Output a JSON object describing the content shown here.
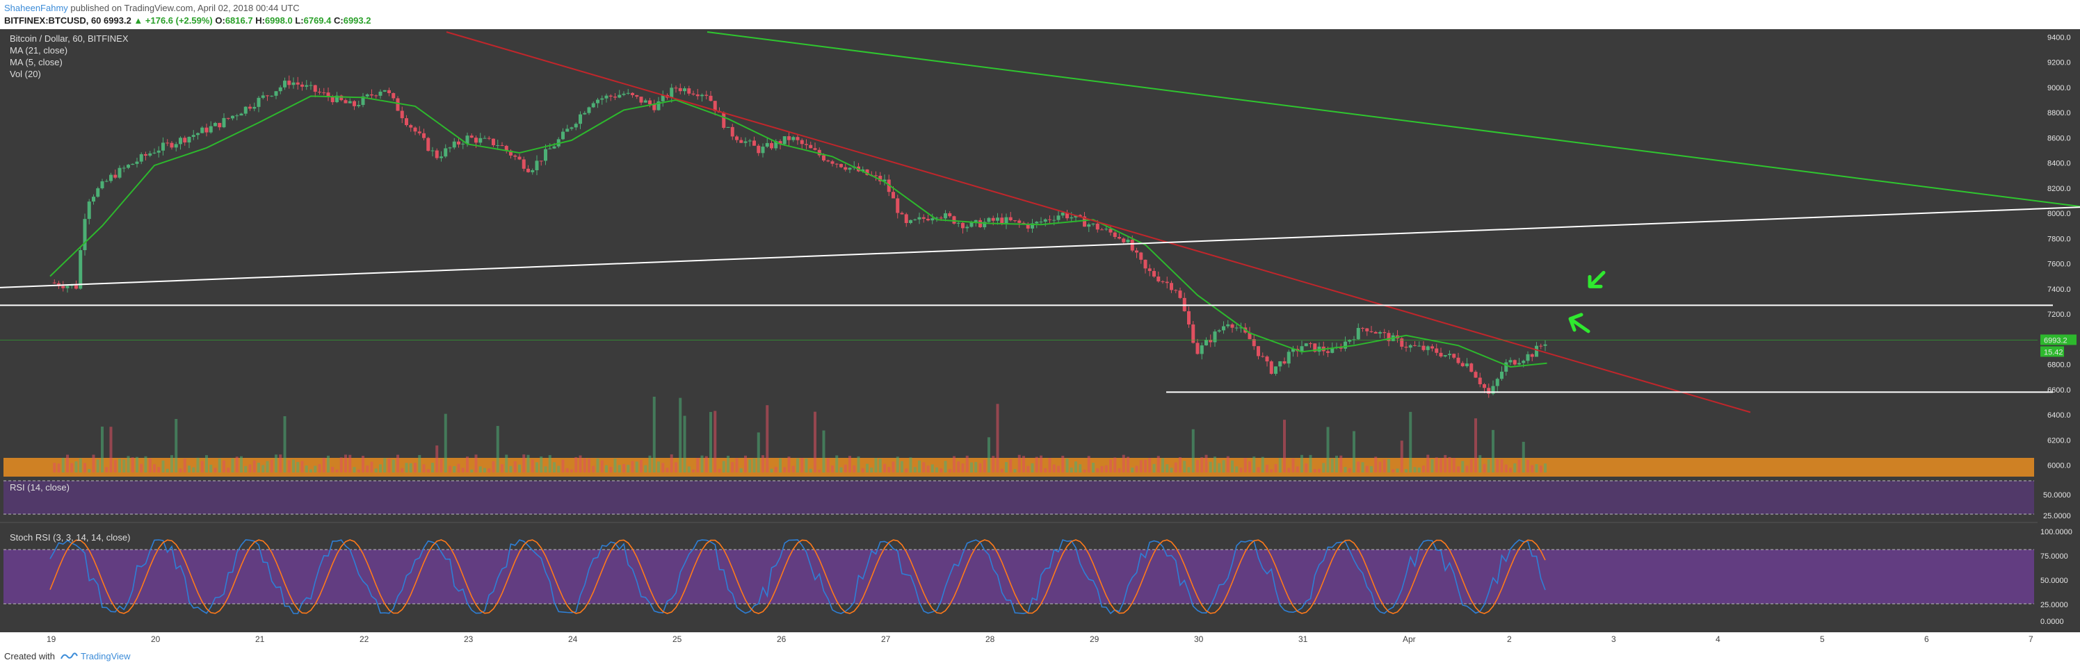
{
  "header": {
    "author": "ShaheenFahmy",
    "published": " published on TradingView.com, April 02, 2018 00:44 UTC",
    "symbol": "BITFINEX:BTCUSD, 60",
    "last": "6993.2",
    "change": "▲ +176.6 (+2.59%)",
    "o_label": "O:",
    "o_val": "6816.7",
    "h_label": "H:",
    "h_val": "6998.0",
    "l_label": "L:",
    "l_val": "6769.4",
    "c_label": "C:",
    "c_val": "6993.2"
  },
  "legend": {
    "title": "Bitcoin / Dollar, 60, BITFINEX",
    "ma21": "MA (21, close)",
    "ma5": "MA (5, close)",
    "vol": "Vol (20)",
    "rsi": "RSI (14, close)",
    "stoch": "Stoch RSI (3, 3, 14, 14, close)"
  },
  "price_badges": {
    "last": "6993.2",
    "ma": "15.42"
  },
  "footer": {
    "created": "Created with",
    "brand": "TradingView"
  },
  "colors": {
    "panel_bg": "#3b3b3b",
    "bull": "#4caf75",
    "bear": "#e05060",
    "ma21": "#2db82d",
    "trend_red": "#c0262b",
    "trend_green": "#2fc62f",
    "support_white": "#ffffff",
    "volume_band": "#e08a22",
    "rsi_band": "#5a3a7a",
    "stoch_band": "#6a3e8e",
    "stoch_k": "#2e7fd6",
    "stoch_d": "#ff7a1a",
    "arrow": "#2fe82f"
  },
  "chart_data": {
    "type": "candlestick",
    "title": "Bitcoin / Dollar, 60, BITFINEX",
    "timeframe": "60",
    "x_axis": {
      "ticks": [
        "19",
        "20",
        "21",
        "22",
        "23",
        "24",
        "25",
        "26",
        "27",
        "28",
        "29",
        "30",
        "31",
        "Apr",
        "2",
        "3",
        "4",
        "5",
        "6",
        "7"
      ]
    },
    "price_axis": {
      "ticks": [
        "9400.0",
        "9200.0",
        "9000.0",
        "8800.0",
        "8600.0",
        "8400.0",
        "8200.0",
        "8000.0",
        "7800.0",
        "7600.0",
        "7400.0",
        "7200.0",
        "7000.0",
        "6800.0",
        "6600.0",
        "6400.0",
        "6200.0",
        "6000.0"
      ],
      "range": [
        5920,
        9440
      ]
    },
    "rsi_axis": {
      "ticks": [
        "50.0000",
        "25.0000"
      ]
    },
    "stoch_axis": {
      "ticks": [
        "100.0000",
        "75.0000",
        "50.0000",
        "25.0000",
        "0.0000"
      ],
      "range": [
        0,
        100
      ]
    },
    "last_price": 6993.2,
    "close_path": [
      {
        "t": 0.0,
        "p": 7450
      },
      {
        "t": 0.25,
        "p": 7420
      },
      {
        "t": 0.35,
        "p": 8100
      },
      {
        "t": 0.6,
        "p": 8300
      },
      {
        "t": 1.0,
        "p": 8500
      },
      {
        "t": 1.3,
        "p": 8600
      },
      {
        "t": 1.6,
        "p": 8700
      },
      {
        "t": 2.0,
        "p": 8900
      },
      {
        "t": 2.3,
        "p": 9050
      },
      {
        "t": 2.6,
        "p": 8950
      },
      {
        "t": 2.9,
        "p": 8850
      },
      {
        "t": 3.2,
        "p": 9000
      },
      {
        "t": 3.4,
        "p": 8750
      },
      {
        "t": 3.7,
        "p": 8450
      },
      {
        "t": 4.0,
        "p": 8600
      },
      {
        "t": 4.3,
        "p": 8550
      },
      {
        "t": 4.6,
        "p": 8350
      },
      {
        "t": 4.9,
        "p": 8600
      },
      {
        "t": 5.2,
        "p": 8900
      },
      {
        "t": 5.5,
        "p": 8950
      },
      {
        "t": 5.8,
        "p": 8850
      },
      {
        "t": 6.0,
        "p": 9000
      },
      {
        "t": 6.3,
        "p": 8950
      },
      {
        "t": 6.5,
        "p": 8650
      },
      {
        "t": 6.8,
        "p": 8500
      },
      {
        "t": 7.1,
        "p": 8600
      },
      {
        "t": 7.4,
        "p": 8450
      },
      {
        "t": 7.7,
        "p": 8350
      },
      {
        "t": 8.0,
        "p": 8250
      },
      {
        "t": 8.2,
        "p": 7900
      },
      {
        "t": 8.5,
        "p": 8000
      },
      {
        "t": 8.8,
        "p": 7900
      },
      {
        "t": 9.1,
        "p": 7950
      },
      {
        "t": 9.4,
        "p": 7900
      },
      {
        "t": 9.7,
        "p": 8000
      },
      {
        "t": 10.0,
        "p": 7900
      },
      {
        "t": 10.3,
        "p": 7800
      },
      {
        "t": 10.5,
        "p": 7550
      },
      {
        "t": 10.8,
        "p": 7400
      },
      {
        "t": 11.0,
        "p": 6900
      },
      {
        "t": 11.3,
        "p": 7150
      },
      {
        "t": 11.5,
        "p": 7000
      },
      {
        "t": 11.7,
        "p": 6750
      },
      {
        "t": 12.0,
        "p": 6950
      },
      {
        "t": 12.3,
        "p": 6900
      },
      {
        "t": 12.6,
        "p": 7100
      },
      {
        "t": 13.0,
        "p": 6950
      },
      {
        "t": 13.3,
        "p": 6900
      },
      {
        "t": 13.6,
        "p": 6800
      },
      {
        "t": 13.8,
        "p": 6550
      },
      {
        "t": 13.95,
        "p": 6800
      },
      {
        "t": 14.2,
        "p": 6880
      },
      {
        "t": 14.35,
        "p": 6993
      }
    ],
    "ma21_path": [
      {
        "t": 0.0,
        "p": 7500
      },
      {
        "t": 0.5,
        "p": 7900
      },
      {
        "t": 1.0,
        "p": 8380
      },
      {
        "t": 1.5,
        "p": 8520
      },
      {
        "t": 2.0,
        "p": 8720
      },
      {
        "t": 2.5,
        "p": 8930
      },
      {
        "t": 3.0,
        "p": 8920
      },
      {
        "t": 3.5,
        "p": 8850
      },
      {
        "t": 4.0,
        "p": 8550
      },
      {
        "t": 4.5,
        "p": 8480
      },
      {
        "t": 5.0,
        "p": 8580
      },
      {
        "t": 5.5,
        "p": 8820
      },
      {
        "t": 6.0,
        "p": 8900
      },
      {
        "t": 6.5,
        "p": 8750
      },
      {
        "t": 7.0,
        "p": 8550
      },
      {
        "t": 7.5,
        "p": 8450
      },
      {
        "t": 8.0,
        "p": 8250
      },
      {
        "t": 8.5,
        "p": 7950
      },
      {
        "t": 9.0,
        "p": 7920
      },
      {
        "t": 9.5,
        "p": 7910
      },
      {
        "t": 10.0,
        "p": 7950
      },
      {
        "t": 10.5,
        "p": 7750
      },
      {
        "t": 11.0,
        "p": 7350
      },
      {
        "t": 11.5,
        "p": 7050
      },
      {
        "t": 12.0,
        "p": 6900
      },
      {
        "t": 12.5,
        "p": 6950
      },
      {
        "t": 13.0,
        "p": 7030
      },
      {
        "t": 13.5,
        "p": 6950
      },
      {
        "t": 14.0,
        "p": 6780
      },
      {
        "t": 14.35,
        "p": 6810
      }
    ],
    "trendlines": [
      {
        "name": "descending-red",
        "color": "#c0262b",
        "from": {
          "t": 3.8,
          "p": 9440
        },
        "to": {
          "t": 16.3,
          "p": 6420
        }
      },
      {
        "name": "descending-green",
        "color": "#2fc62f",
        "from": {
          "t": 6.3,
          "p": 9440
        },
        "to": {
          "t": 19.5,
          "p": 8050
        }
      },
      {
        "name": "ascending-white",
        "color": "#ffffff",
        "from": {
          "t": -0.5,
          "p": 7410
        },
        "to": {
          "t": 19.5,
          "p": 8050
        }
      },
      {
        "name": "resistance-white",
        "color": "#ffffff",
        "from": {
          "t": -0.5,
          "p": 7270
        },
        "to": {
          "t": 19.2,
          "p": 7270
        }
      },
      {
        "name": "support-white",
        "color": "#ffffff",
        "from": {
          "t": 10.7,
          "p": 6580
        },
        "to": {
          "t": 19.2,
          "p": 6580
        }
      }
    ],
    "annotations": [
      {
        "type": "arrow",
        "color": "#2fe82f",
        "at": {
          "t": 14.8,
          "p": 7430
        }
      },
      {
        "type": "arrow",
        "color": "#2fe82f",
        "at": {
          "t": 14.6,
          "p": 7140
        }
      }
    ],
    "series": [
      {
        "name": "MA (21, close)",
        "color": "#2db82d"
      },
      {
        "name": "Vol (20)",
        "color": "#e08a22"
      },
      {
        "name": "RSI (14, close)",
        "color": "#5a3a7a"
      },
      {
        "name": "Stoch RSI (3, 3, 14, 14, close)",
        "color": "#2e7fd6"
      }
    ]
  }
}
